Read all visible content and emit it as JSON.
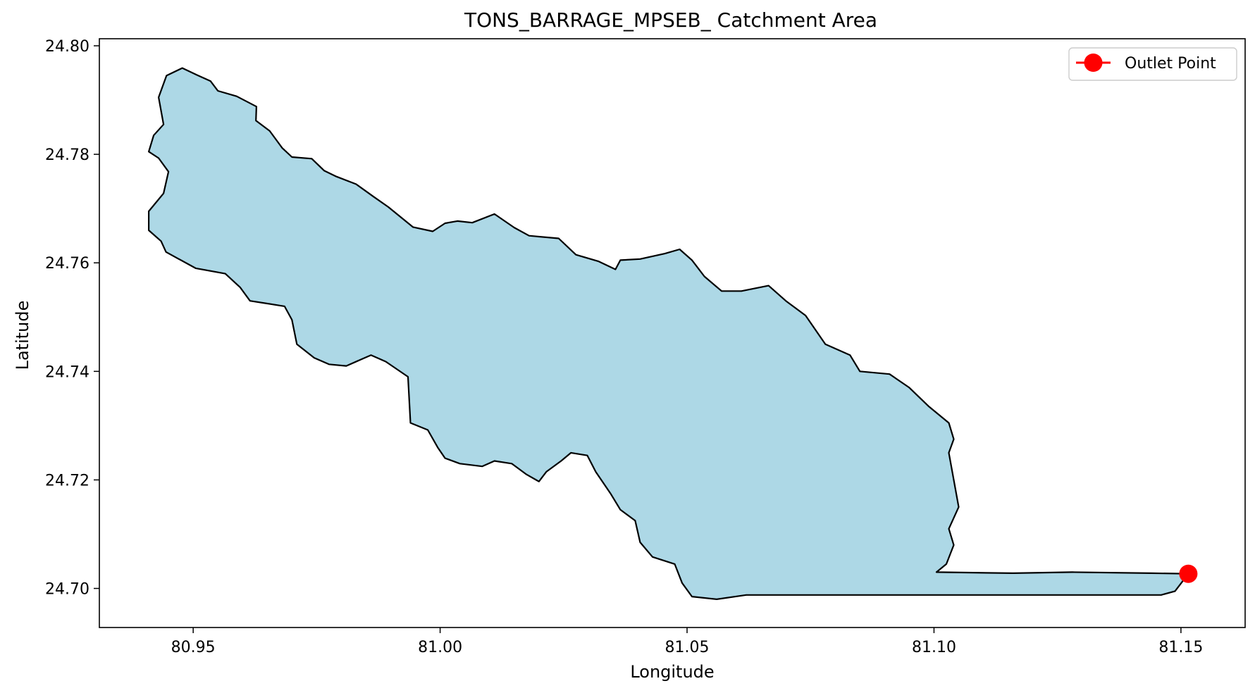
{
  "chart_data": {
    "type": "map",
    "title": "TONS_BARRAGE_MPSEB_ Catchment Area",
    "xlabel": "Longitude",
    "ylabel": "Latitude",
    "xlim": [
      80.931,
      81.163
    ],
    "ylim": [
      24.6928,
      24.8013
    ],
    "xticks": [
      "80.95",
      "81.00",
      "81.05",
      "81.10",
      "81.15"
    ],
    "yticks": [
      "24.70",
      "24.72",
      "24.74",
      "24.76",
      "24.78",
      "24.80"
    ],
    "legend_position": "top-right",
    "colors": {
      "catchment_fill": "#add8e6",
      "catchment_edge": "#000000",
      "outlet": "#ff0000"
    },
    "outlet_point": {
      "label": "Outlet Point",
      "lon": 81.1515,
      "lat": 24.7027
    },
    "catchment_boundary": [
      [
        80.9446,
        24.7945
      ],
      [
        80.9478,
        24.7959
      ],
      [
        80.9508,
        24.7946
      ],
      [
        80.9535,
        24.7935
      ],
      [
        80.955,
        24.7917
      ],
      [
        80.9588,
        24.7907
      ],
      [
        80.9628,
        24.7888
      ],
      [
        80.9627,
        24.7862
      ],
      [
        80.9655,
        24.7843
      ],
      [
        80.968,
        24.7812
      ],
      [
        80.97,
        24.7795
      ],
      [
        80.974,
        24.7792
      ],
      [
        80.9765,
        24.777
      ],
      [
        80.979,
        24.7759
      ],
      [
        80.983,
        24.7745
      ],
      [
        80.9865,
        24.7722
      ],
      [
        80.9895,
        24.7703
      ],
      [
        80.9945,
        24.7666
      ],
      [
        80.9985,
        24.7658
      ],
      [
        81.001,
        24.7673
      ],
      [
        81.0035,
        24.7677
      ],
      [
        81.0065,
        24.7674
      ],
      [
        81.011,
        24.769
      ],
      [
        81.015,
        24.7665
      ],
      [
        81.018,
        24.765
      ],
      [
        81.024,
        24.7645
      ],
      [
        81.0275,
        24.7615
      ],
      [
        81.032,
        24.7603
      ],
      [
        81.0355,
        24.7588
      ],
      [
        81.0365,
        24.7605
      ],
      [
        81.0405,
        24.7607
      ],
      [
        81.0455,
        24.7617
      ],
      [
        81.0485,
        24.7625
      ],
      [
        81.051,
        24.7605
      ],
      [
        81.0535,
        24.7575
      ],
      [
        81.057,
        24.7548
      ],
      [
        81.061,
        24.7548
      ],
      [
        81.0665,
        24.7558
      ],
      [
        81.07,
        24.753
      ],
      [
        81.074,
        24.7503
      ],
      [
        81.078,
        24.745
      ],
      [
        81.083,
        24.743
      ],
      [
        81.085,
        24.74
      ],
      [
        81.091,
        24.7395
      ],
      [
        81.095,
        24.737
      ],
      [
        81.099,
        24.7335
      ],
      [
        81.103,
        24.7305
      ],
      [
        81.104,
        24.7275
      ],
      [
        81.103,
        24.725
      ],
      [
        81.105,
        24.715
      ],
      [
        81.103,
        24.711
      ],
      [
        81.104,
        24.708
      ],
      [
        81.1025,
        24.7045
      ],
      [
        81.1005,
        24.703
      ],
      [
        81.116,
        24.7028
      ],
      [
        81.128,
        24.703
      ],
      [
        81.144,
        24.7028
      ],
      [
        81.1515,
        24.7027
      ],
      [
        81.1488,
        24.6995
      ],
      [
        81.146,
        24.6988
      ],
      [
        81.13,
        24.6988
      ],
      [
        81.1,
        24.6988
      ],
      [
        81.08,
        24.6988
      ],
      [
        81.062,
        24.6988
      ],
      [
        81.056,
        24.698
      ],
      [
        81.051,
        24.6985
      ],
      [
        81.049,
        24.701
      ],
      [
        81.0475,
        24.7045
      ],
      [
        81.043,
        24.7058
      ],
      [
        81.0405,
        24.7085
      ],
      [
        81.0395,
        24.7125
      ],
      [
        81.0365,
        24.7145
      ],
      [
        81.0345,
        24.7175
      ],
      [
        81.0315,
        24.7215
      ],
      [
        81.0298,
        24.7245
      ],
      [
        81.0265,
        24.725
      ],
      [
        81.0245,
        24.7235
      ],
      [
        81.0215,
        24.7215
      ],
      [
        81.02,
        24.7197
      ],
      [
        81.0175,
        24.721
      ],
      [
        81.0145,
        24.723
      ],
      [
        81.011,
        24.7235
      ],
      [
        81.0085,
        24.7225
      ],
      [
        81.004,
        24.723
      ],
      [
        81.001,
        24.724
      ],
      [
        80.9995,
        24.726
      ],
      [
        80.9975,
        24.7292
      ],
      [
        80.994,
        24.7305
      ],
      [
        80.9935,
        24.739
      ],
      [
        80.989,
        24.7418
      ],
      [
        80.986,
        24.743
      ],
      [
        80.981,
        24.741
      ],
      [
        80.9775,
        24.7413
      ],
      [
        80.9745,
        24.7425
      ],
      [
        80.971,
        24.745
      ],
      [
        80.97,
        24.7495
      ],
      [
        80.9685,
        24.752
      ],
      [
        80.965,
        24.7525
      ],
      [
        80.9615,
        24.753
      ],
      [
        80.9595,
        24.7555
      ],
      [
        80.9565,
        24.758
      ],
      [
        80.9505,
        24.759
      ],
      [
        80.9445,
        24.762
      ],
      [
        80.9435,
        24.764
      ],
      [
        80.941,
        24.766
      ],
      [
        80.941,
        24.7695
      ],
      [
        80.944,
        24.7728
      ],
      [
        80.945,
        24.7768
      ],
      [
        80.943,
        24.7793
      ],
      [
        80.941,
        24.7805
      ],
      [
        80.942,
        24.7835
      ],
      [
        80.944,
        24.7855
      ],
      [
        80.943,
        24.7905
      ],
      [
        80.9446,
        24.7945
      ]
    ]
  }
}
